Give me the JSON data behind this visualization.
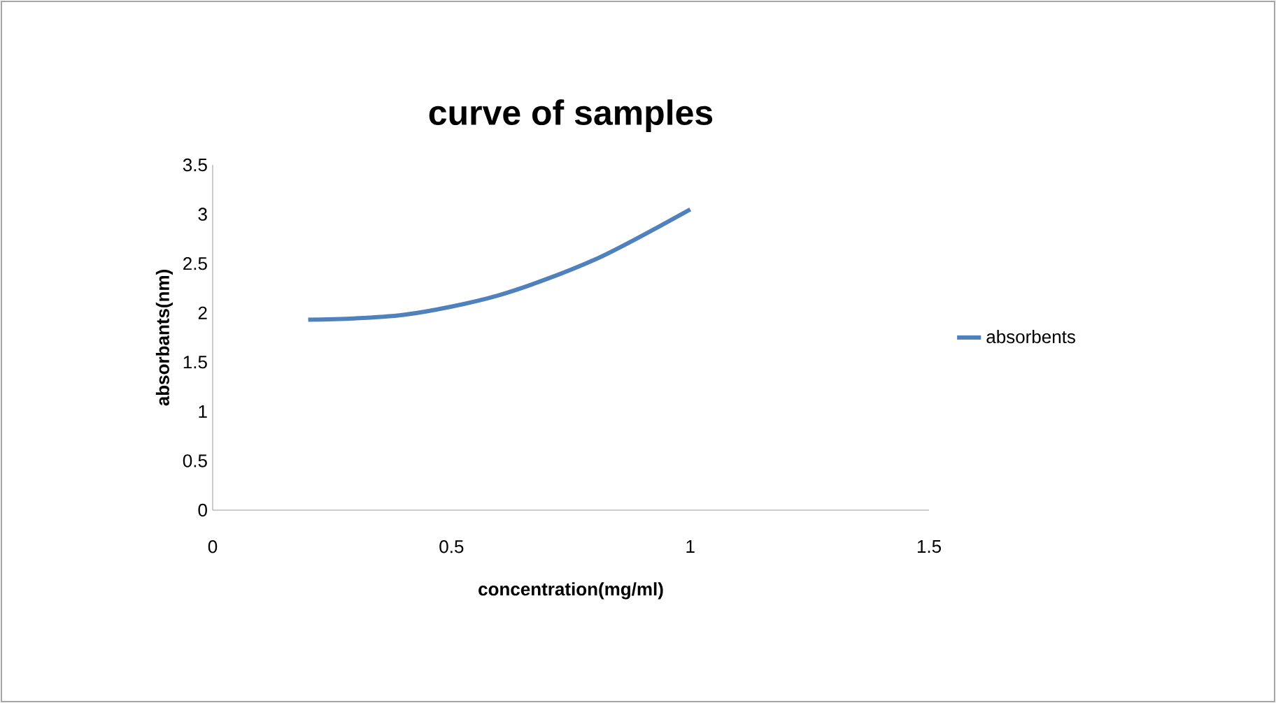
{
  "chart_data": {
    "type": "line",
    "title": "curve of samples",
    "xlabel": "concentration(mg/ml)",
    "ylabel": "absorbants(nm)",
    "x": [
      0.2,
      0.4,
      0.6,
      0.8,
      1.0
    ],
    "series": [
      {
        "name": "absorbents",
        "color": "#4f81bd",
        "values": [
          1.93,
          1.98,
          2.18,
          2.54,
          3.05
        ]
      }
    ],
    "xlim": [
      0,
      1.5
    ],
    "xticks": [
      0,
      0.5,
      1,
      1.5
    ],
    "ylim": [
      0,
      3.5
    ],
    "yticks": [
      0,
      0.5,
      1,
      1.5,
      2,
      2.5,
      3,
      3.5
    ],
    "grid": false,
    "legend": "right",
    "marker": "none",
    "line_style": "solid"
  }
}
